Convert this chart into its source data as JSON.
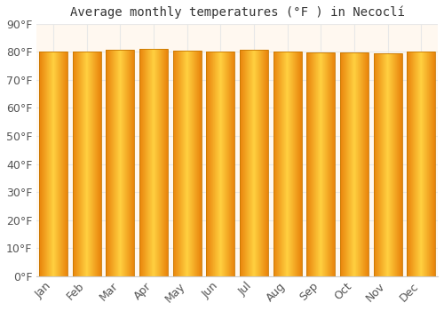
{
  "title": "Average monthly temperatures (°F ) in Necoclí",
  "months": [
    "Jan",
    "Feb",
    "Mar",
    "Apr",
    "May",
    "Jun",
    "Jul",
    "Aug",
    "Sep",
    "Oct",
    "Nov",
    "Dec"
  ],
  "values": [
    80.2,
    80.1,
    80.6,
    81.0,
    80.4,
    80.1,
    80.6,
    80.1,
    79.9,
    79.7,
    79.5,
    80.0
  ],
  "ylim": [
    0,
    90
  ],
  "yticks": [
    0,
    10,
    20,
    30,
    40,
    50,
    60,
    70,
    80,
    90
  ],
  "ytick_labels": [
    "0°F",
    "10°F",
    "20°F",
    "30°F",
    "40°F",
    "50°F",
    "60°F",
    "70°F",
    "80°F",
    "90°F"
  ],
  "bar_color_left": "#E8820A",
  "bar_color_mid": "#FFD040",
  "bar_color_right": "#E8820A",
  "bar_edge_color": "#C87800",
  "background_color": "#FFFFFF",
  "plot_bg_color": "#FFF8F0",
  "grid_color": "#E8E8E8",
  "title_fontsize": 10,
  "tick_fontsize": 9,
  "bar_width": 0.85
}
